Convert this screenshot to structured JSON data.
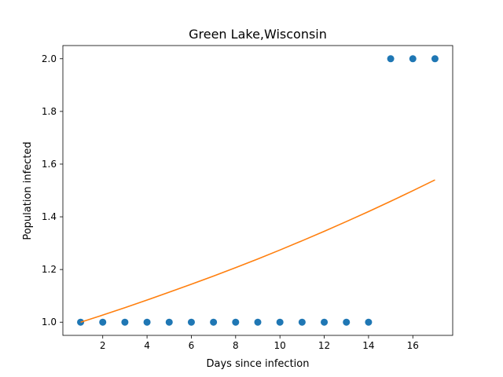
{
  "chart_data": {
    "type": "scatter",
    "title": "Green Lake,Wisconsin",
    "xlabel": "Days since infection",
    "ylabel": "Population infected",
    "xlim": [
      0.2,
      17.8
    ],
    "ylim": [
      0.95,
      2.05
    ],
    "xticks": [
      2,
      4,
      6,
      8,
      10,
      12,
      14,
      16
    ],
    "yticks": [
      "1.0",
      "1.2",
      "1.4",
      "1.6",
      "1.8",
      "2.0"
    ],
    "grid": false,
    "series": [
      {
        "type": "scatter",
        "color": "#1f77b4",
        "x": [
          1,
          2,
          3,
          4,
          5,
          6,
          7,
          8,
          9,
          10,
          11,
          12,
          13,
          14,
          15,
          16,
          17
        ],
        "y": [
          1,
          1,
          1,
          1,
          1,
          1,
          1,
          1,
          1,
          1,
          1,
          1,
          1,
          1,
          2,
          2,
          2
        ]
      },
      {
        "type": "line",
        "color": "#ff7f0e",
        "x": [
          1,
          2,
          3,
          4,
          5,
          6,
          7,
          8,
          9,
          10,
          11,
          12,
          13,
          14,
          15,
          16,
          17
        ],
        "y": [
          1.0,
          1.027,
          1.055,
          1.084,
          1.114,
          1.144,
          1.175,
          1.207,
          1.24,
          1.274,
          1.309,
          1.345,
          1.382,
          1.42,
          1.459,
          1.499,
          1.54
        ]
      }
    ]
  }
}
